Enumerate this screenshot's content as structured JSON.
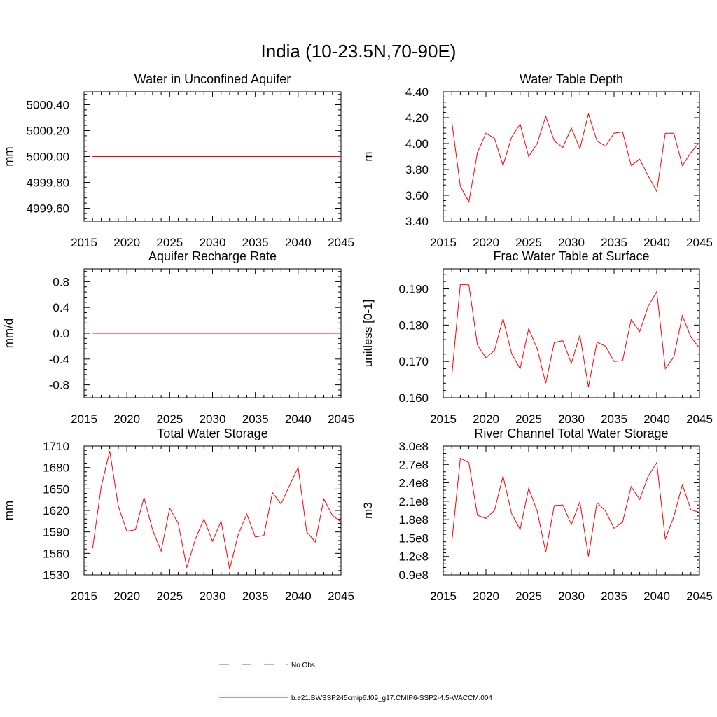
{
  "figure": {
    "title": "India (10-23.5N,70-90E)",
    "legend": [
      {
        "label": "No Obs",
        "color": "#6a6aa8",
        "dash": "dashed"
      },
      {
        "label": "b.e21.BWSSP245cmip6.f09_g17.CMIP6-SSP2-4.5-WACCM.004",
        "color": "#ff0000",
        "dash": "solid"
      }
    ]
  },
  "chart_data": [
    {
      "type": "line",
      "title": "Water in Unconfined Aquifer",
      "ylabel": "mm",
      "xlim": [
        2015,
        2045
      ],
      "ylim": [
        4999.5,
        5000.5
      ],
      "yticks": [
        4999.6,
        4999.8,
        5000.0,
        5000.2,
        5000.4
      ],
      "ytick_labels": [
        "4999.60",
        "4999.80",
        "5000.00",
        "5000.20",
        "5000.40"
      ],
      "xticks": [
        2015,
        2020,
        2025,
        2030,
        2035,
        2040,
        2045
      ],
      "xtick_labels": [
        "2015",
        "2020",
        "2025",
        "2030",
        "2035",
        "2040",
        "2045"
      ],
      "x": [
        2016,
        2045
      ],
      "series": [
        {
          "values": [
            5000.0,
            5000.0
          ],
          "color": "#ff0000"
        }
      ]
    },
    {
      "type": "line",
      "title": "Water Table Depth",
      "ylabel": "m",
      "xlim": [
        2015,
        2045
      ],
      "ylim": [
        3.4,
        4.4
      ],
      "yticks": [
        3.4,
        3.6,
        3.8,
        4.0,
        4.2,
        4.4
      ],
      "ytick_labels": [
        "3.40",
        "3.60",
        "3.80",
        "4.00",
        "4.20",
        "4.40"
      ],
      "xticks": [
        2015,
        2020,
        2025,
        2030,
        2035,
        2040,
        2045
      ],
      "xtick_labels": [
        "2015",
        "2020",
        "2025",
        "2030",
        "2035",
        "2040",
        "2045"
      ],
      "x": [
        2016,
        2017,
        2018,
        2019,
        2020,
        2021,
        2022,
        2023,
        2024,
        2025,
        2026,
        2027,
        2028,
        2029,
        2030,
        2031,
        2032,
        2033,
        2034,
        2035,
        2036,
        2037,
        2038,
        2039,
        2040,
        2041,
        2042,
        2043,
        2044,
        2045
      ],
      "series": [
        {
          "values": [
            4.17,
            3.67,
            3.55,
            3.93,
            4.08,
            4.04,
            3.83,
            4.05,
            4.15,
            3.9,
            4.0,
            4.21,
            4.02,
            3.97,
            4.12,
            3.96,
            4.23,
            4.02,
            3.98,
            4.08,
            4.09,
            3.83,
            3.88,
            3.75,
            3.63,
            4.08,
            4.08,
            3.83,
            3.93,
            4.01
          ],
          "color": "#ff0000"
        }
      ]
    },
    {
      "type": "line",
      "title": "Aquifer Recharge Rate",
      "ylabel": "mm/d",
      "xlim": [
        2015,
        2045
      ],
      "ylim": [
        -1.0,
        1.0
      ],
      "yticks": [
        -0.8,
        -0.4,
        0.0,
        0.4,
        0.8
      ],
      "ytick_labels": [
        "-0.8",
        "-0.4",
        "0.0",
        "0.4",
        "0.8"
      ],
      "xticks": [
        2015,
        2020,
        2025,
        2030,
        2035,
        2040,
        2045
      ],
      "xtick_labels": [
        "2015",
        "2020",
        "2025",
        "2030",
        "2035",
        "2040",
        "2045"
      ],
      "x": [
        2016,
        2045
      ],
      "series": [
        {
          "values": [
            0.0,
            0.0
          ],
          "color": "#ff0000"
        }
      ]
    },
    {
      "type": "line",
      "title": "Frac Water Table at Surface",
      "ylabel": "unitless [0-1]",
      "xlim": [
        2015,
        2045
      ],
      "ylim": [
        0.16,
        0.1955
      ],
      "yticks": [
        0.16,
        0.17,
        0.18,
        0.19
      ],
      "ytick_labels": [
        "0.160",
        "0.170",
        "0.180",
        "0.190"
      ],
      "xticks": [
        2015,
        2020,
        2025,
        2030,
        2035,
        2040,
        2045
      ],
      "xtick_labels": [
        "2015",
        "2020",
        "2025",
        "2030",
        "2035",
        "2040",
        "2045"
      ],
      "x": [
        2016,
        2017,
        2018,
        2019,
        2020,
        2021,
        2022,
        2023,
        2024,
        2025,
        2026,
        2027,
        2028,
        2029,
        2030,
        2031,
        2032,
        2033,
        2034,
        2035,
        2036,
        2037,
        2038,
        2039,
        2040,
        2041,
        2042,
        2043,
        2044,
        2045
      ],
      "series": [
        {
          "values": [
            0.166,
            0.1912,
            0.1911,
            0.1745,
            0.171,
            0.173,
            0.1818,
            0.1722,
            0.168,
            0.179,
            0.1735,
            0.164,
            0.1752,
            0.1757,
            0.1695,
            0.1772,
            0.163,
            0.1753,
            0.1742,
            0.17,
            0.1702,
            0.1815,
            0.1782,
            0.1852,
            0.1892,
            0.168,
            0.1712,
            0.1826,
            0.1767,
            0.1737
          ],
          "color": "#ff0000"
        }
      ]
    },
    {
      "type": "line",
      "title": "Total Water Storage",
      "ylabel": "mm",
      "xlim": [
        2015,
        2045
      ],
      "ylim": [
        1530,
        1710
      ],
      "yticks": [
        1530,
        1560,
        1590,
        1620,
        1650,
        1680,
        1710
      ],
      "ytick_labels": [
        "1530",
        "1560",
        "1590",
        "1620",
        "1650",
        "1680",
        "1710"
      ],
      "xticks": [
        2015,
        2020,
        2025,
        2030,
        2035,
        2040,
        2045
      ],
      "xtick_labels": [
        "2015",
        "2020",
        "2025",
        "2030",
        "2035",
        "2040",
        "2045"
      ],
      "x": [
        2016,
        2017,
        2018,
        2019,
        2020,
        2021,
        2022,
        2023,
        2024,
        2025,
        2026,
        2027,
        2028,
        2029,
        2030,
        2031,
        2032,
        2033,
        2034,
        2035,
        2036,
        2037,
        2038,
        2039,
        2040,
        2041,
        2042,
        2043,
        2044,
        2045
      ],
      "series": [
        {
          "values": [
            1567,
            1653,
            1703,
            1626,
            1591,
            1593,
            1638,
            1593,
            1563,
            1623,
            1602,
            1540,
            1580,
            1608,
            1577,
            1605,
            1538,
            1586,
            1615,
            1583,
            1585,
            1645,
            1629,
            1655,
            1680,
            1590,
            1576,
            1636,
            1613,
            1604
          ],
          "color": "#ff0000"
        }
      ]
    },
    {
      "type": "line",
      "title": "River Channel Total Water Storage",
      "ylabel": "m3",
      "xlim": [
        2015,
        2045
      ],
      "ylim": [
        90000000.0,
        300000000.0
      ],
      "yticks": [
        90000000.0,
        120000000.0,
        150000000.0,
        180000000.0,
        210000000.0,
        240000000.0,
        270000000.0,
        300000000.0
      ],
      "ytick_labels": [
        "0.9e8",
        "1.2e8",
        "1.5e8",
        "1.8e8",
        "2.1e8",
        "2.4e8",
        "2.7e8",
        "3.0e8"
      ],
      "xticks": [
        2015,
        2020,
        2025,
        2030,
        2035,
        2040,
        2045
      ],
      "xtick_labels": [
        "2015",
        "2020",
        "2025",
        "2030",
        "2035",
        "2040",
        "2045"
      ],
      "x": [
        2016,
        2017,
        2018,
        2019,
        2020,
        2021,
        2022,
        2023,
        2024,
        2025,
        2026,
        2027,
        2028,
        2029,
        2030,
        2031,
        2032,
        2033,
        2034,
        2035,
        2036,
        2037,
        2038,
        2039,
        2040,
        2041,
        2042,
        2043,
        2044,
        2045
      ],
      "series": [
        {
          "values": [
            143000000.0,
            280000000.0,
            273000000.0,
            187000000.0,
            182000000.0,
            195000000.0,
            251000000.0,
            190000000.0,
            164000000.0,
            231000000.0,
            194000000.0,
            127000000.0,
            203000000.0,
            204000000.0,
            172000000.0,
            209000000.0,
            120000000.0,
            208000000.0,
            194000000.0,
            166000000.0,
            176000000.0,
            234000000.0,
            213000000.0,
            251000000.0,
            273000000.0,
            148000000.0,
            185000000.0,
            237000000.0,
            196000000.0,
            192000000.0
          ],
          "color": "#ff0000"
        }
      ]
    }
  ]
}
